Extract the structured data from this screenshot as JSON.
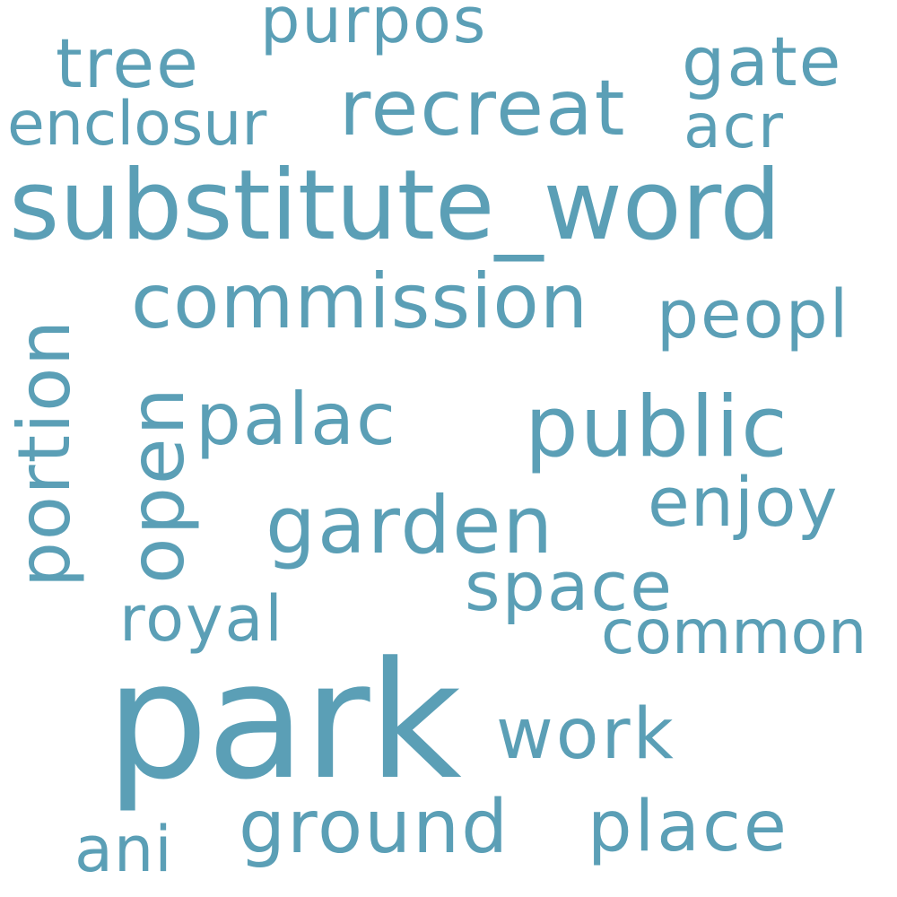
{
  "word_color": "#5b9fb6",
  "background": "#ffffff",
  "words": {
    "purpos": "purpos",
    "tree": "tree",
    "gate": "gate",
    "enclosur": "enclosur",
    "recreat": "recreat",
    "acr": "acr",
    "substitute_word": "substitute_word",
    "commission": "commission",
    "peopl": "peopl",
    "portion": "portion",
    "open": "open",
    "palac": "palac",
    "public": "public",
    "enjoy": "enjoy",
    "garden": "garden",
    "space": "space",
    "royal": "royal",
    "common": "common",
    "park": "park",
    "work": "work",
    "ground": "ground",
    "place": "place",
    "ani": "ani"
  }
}
